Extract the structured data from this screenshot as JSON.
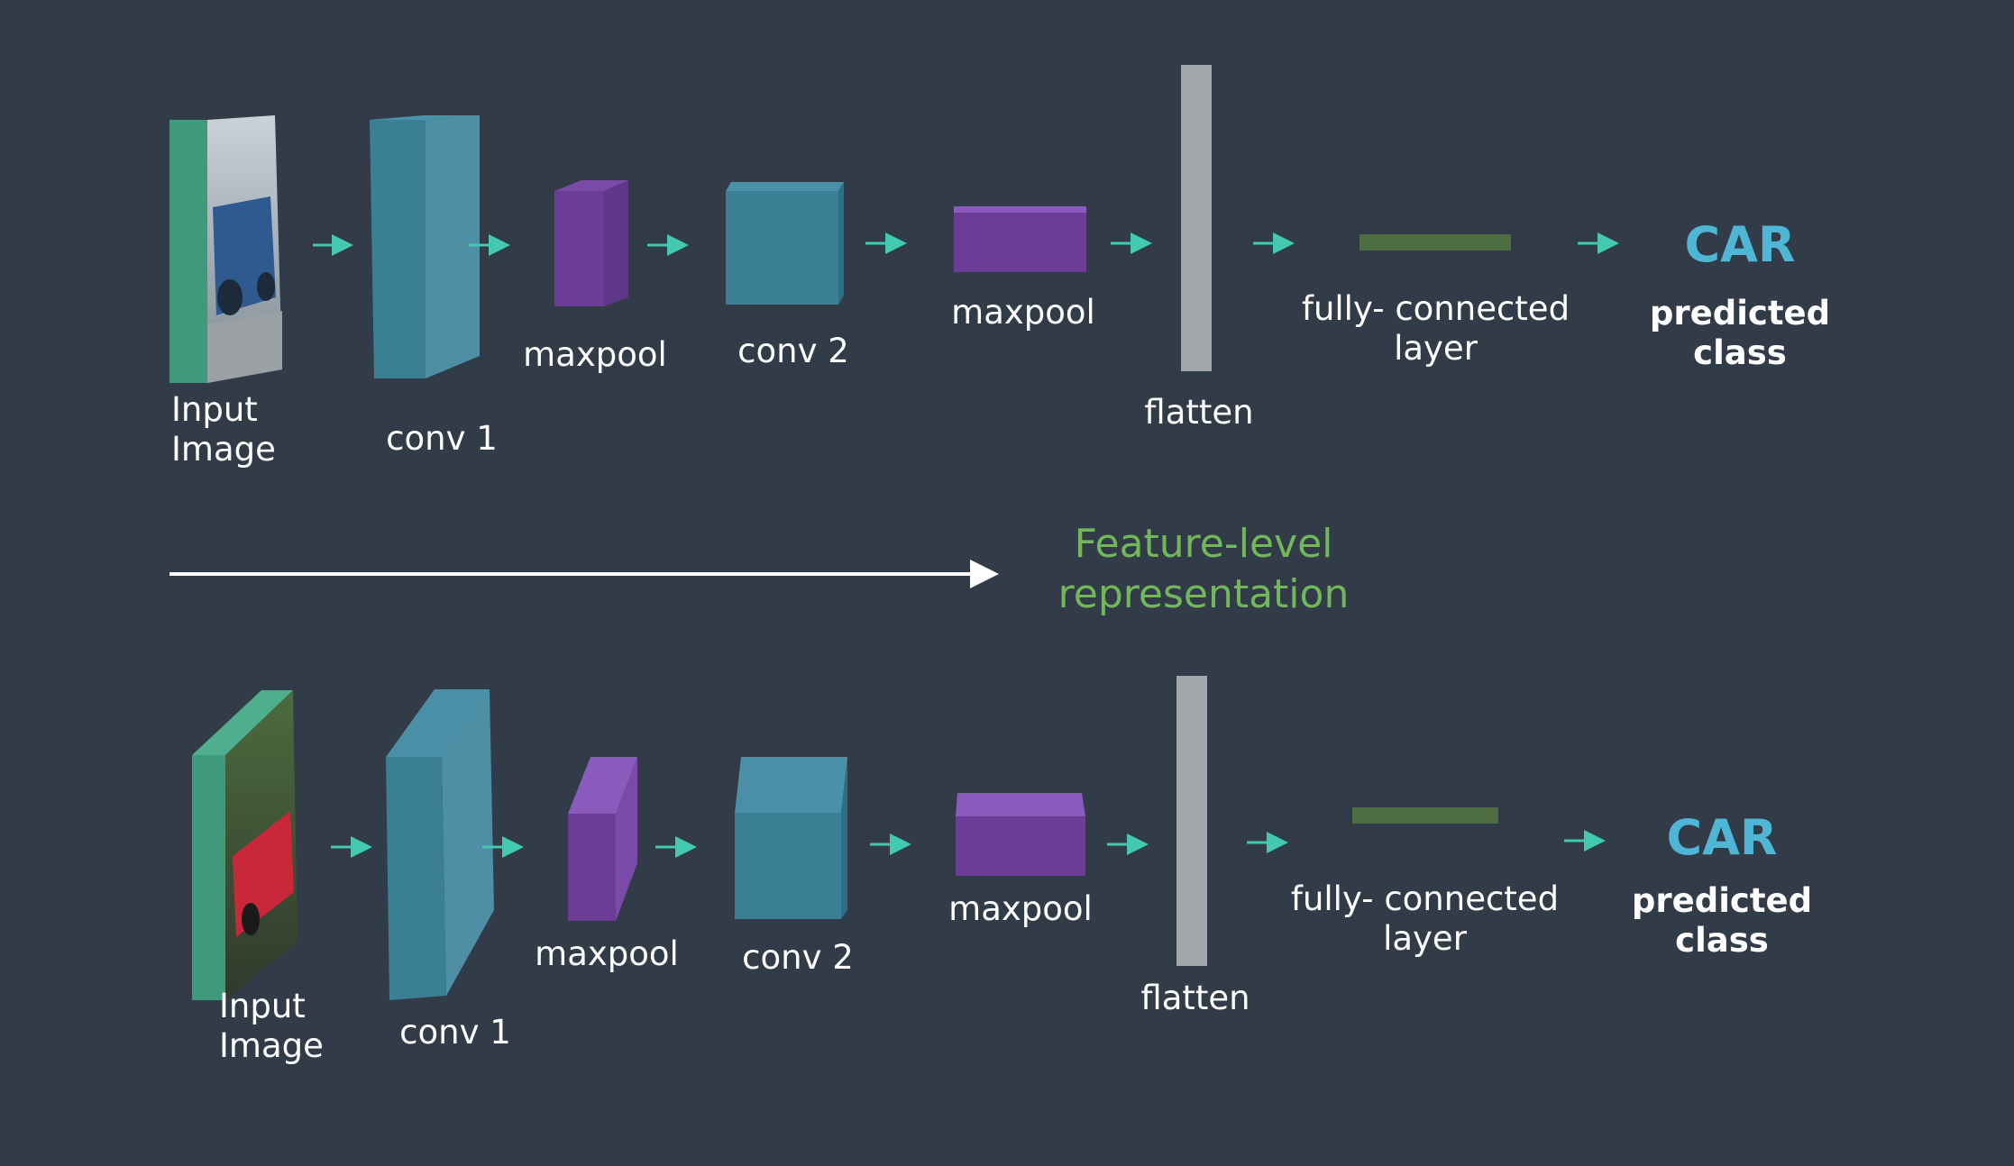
{
  "colors": {
    "background": "#323b48",
    "arrow": "#43c9b0",
    "input_frame": "#3f9a7c",
    "conv": "#3b7f95",
    "maxpool": "#6b3d96",
    "flatten": "#a3a7ab",
    "fully_connected": "#4f6e43",
    "class_text": "#4fb6d6",
    "feature_text": "#72b85b"
  },
  "top_row": {
    "input_label": [
      "Input",
      "Image"
    ],
    "conv1_label": "conv 1",
    "maxpool1_label": "maxpool",
    "conv2_label": "conv 2",
    "maxpool2_label": "maxpool",
    "flatten_label": "flatten",
    "fc_label": [
      "fully- connected",
      "layer"
    ],
    "class_value": "CAR",
    "class_label": [
      "predicted",
      "class"
    ]
  },
  "middle": {
    "feature_text": [
      "Feature-level",
      "representation"
    ]
  },
  "bottom_row": {
    "input_label": [
      "Input",
      "Image"
    ],
    "conv1_label": "conv 1",
    "maxpool1_label": "maxpool",
    "conv2_label": "conv 2",
    "maxpool2_label": "maxpool",
    "flatten_label": "flatten",
    "fc_label": [
      "fully- connected",
      "layer"
    ],
    "class_value": "CAR",
    "class_label": [
      "predicted",
      "class"
    ]
  }
}
